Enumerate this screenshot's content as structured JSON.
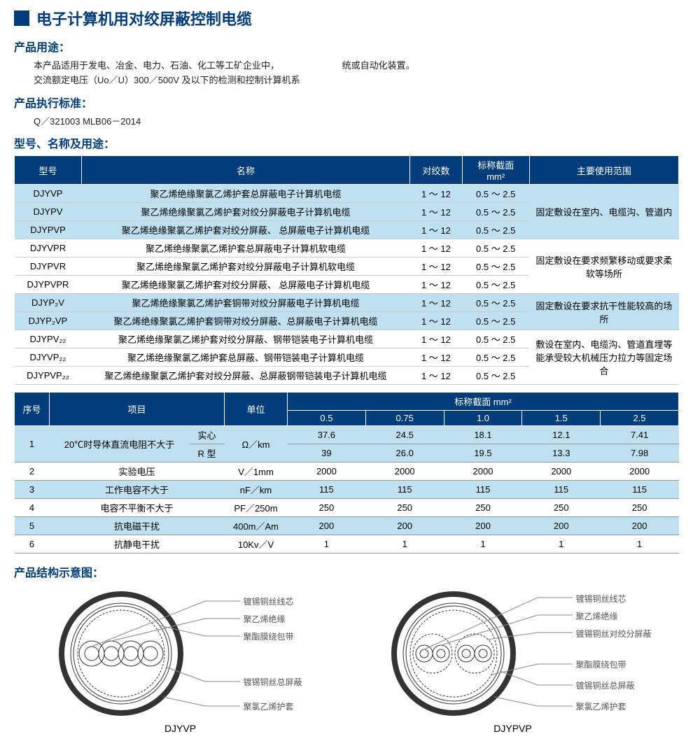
{
  "main_title": "电子计算机用对绞屏蔽控制电缆",
  "sections": {
    "usage_label": "产品用途：",
    "usage_text_1": "本产品适用于发电、冶金、电力、石油、化工等工矿企业中，",
    "usage_text_2": "交流额定电压（Uo／U）300／500V 及以下的检测和控制计算机系",
    "usage_text_3": "统或自动化装置。",
    "standard_label": "产品执行标准：",
    "standard_text": "Q／321003  MLB06－2014",
    "models_label": "型号、名称及用途：",
    "structure_label": "产品结构示意图："
  },
  "table1": {
    "headers": {
      "model": "型号",
      "name": "名称",
      "pairs": "对绞数",
      "section": "标称截面",
      "section_unit": "mm²",
      "usage": "主要使用范围"
    },
    "rows": [
      {
        "model": "DJYVP",
        "name": "聚乙烯绝缘聚氯乙烯护套总屏蔽电子计算机电缆",
        "pairs": "1 ～ 12",
        "section": "0.5 ～ 2.5",
        "usage": "",
        "bg": "blue"
      },
      {
        "model": "DJYPV",
        "name": "聚乙烯绝缘聚氯乙烯护套对绞分屏蔽电子计算机电缆",
        "pairs": "1 ～ 12",
        "section": "0.5 ～ 2.5",
        "usage": "",
        "bg": "blue"
      },
      {
        "model": "DJYPVP",
        "name": "聚乙烯绝缘聚氯乙烯护套对绞分屏蔽、 总屏蔽电子计算机电缆",
        "pairs": "1 ～ 12",
        "section": "0.5 ～ 2.5",
        "usage": "",
        "bg": "blue"
      },
      {
        "model": "DJYVPR",
        "name": "聚乙烯绝缘聚氯乙烯护套总屏蔽电子计算机软电缆",
        "pairs": "1 ～ 12",
        "section": "0.5 ～ 2.5",
        "usage": "",
        "bg": "white"
      },
      {
        "model": "DJYPVR",
        "name": "聚乙烯绝缘聚氯乙烯护套对绞分屏蔽电子计算机软电缆",
        "pairs": "1 ～ 12",
        "section": "0.5 ～ 2.5",
        "usage": "",
        "bg": "white"
      },
      {
        "model": "DJYPVPR",
        "name": "聚乙烯绝缘聚氯乙烯护套对绞分屏蔽、 总屏蔽电子计算机电缆",
        "pairs": "1 ～ 12",
        "section": "0.5 ～ 2.5",
        "usage": "",
        "bg": "white"
      },
      {
        "model": "DJYP₂V",
        "name": "聚乙烯绝缘聚氯乙烯护套铜带对绞分屏蔽电子计算机电缆",
        "pairs": "1 ～ 12",
        "section": "0.5 ～ 2.5",
        "usage": "",
        "bg": "blue"
      },
      {
        "model": "DJYP₂VP",
        "name": "聚乙烯绝缘聚氯乙烯护套铜带对绞分屏蔽、总屏蔽电子计算机电缆",
        "pairs": "1 ～ 12",
        "section": "0.5 ～ 2.5",
        "usage": "",
        "bg": "blue"
      },
      {
        "model": "DJYPV₂₂",
        "name": "聚乙烯绝缘聚氯乙烯护套对绞分屏蔽、钢带铠装电子计算机电缆",
        "pairs": "1 ～ 12",
        "section": "0.5 ～ 2.5",
        "usage": "",
        "bg": "white"
      },
      {
        "model": "DJYVP₂₂",
        "name": "聚乙烯绝缘聚氯乙烯护套总屏蔽、钢带铠装电子计算机电缆",
        "pairs": "1 ～ 12",
        "section": "0.5 ～ 2.5",
        "usage": "",
        "bg": "white"
      },
      {
        "model": "DJYPVP₂₂",
        "name": "聚乙烯绝缘聚氯乙烯护套对绞分屏蔽、总屏蔽钢带铠装电子计算机电缆",
        "pairs": "1 ～ 12",
        "section": "0.5 ～ 2.5",
        "usage": "",
        "bg": "white"
      }
    ],
    "usage_groups": [
      {
        "text": "固定敷设在室内、电缆沟、管道内",
        "rows": 3
      },
      {
        "text": "固定敷设在要求频繁移动或要求柔软等场所",
        "rows": 3
      },
      {
        "text": "固定敷设在要求抗干性能较高的场所",
        "rows": 2
      },
      {
        "text": "敷设在室内、电缆沟、管道直埋等能承受较大机械压力拉力等固定场合",
        "rows": 3
      }
    ]
  },
  "table2": {
    "headers": {
      "seq": "序号",
      "item": "项目",
      "unit": "单位",
      "section": "标称截面  mm²"
    },
    "sub_headers": [
      "0.5",
      "0.75",
      "1.0",
      "1.5",
      "2.5"
    ],
    "row1_label": "1",
    "row1_item": "20℃时导体直流电阻不大于",
    "row1_sub1": "实心",
    "row1_sub2": "R 型",
    "row1_unit": "Ω／km",
    "row1_vals1": [
      "37.6",
      "24.5",
      "18.1",
      "12.1",
      "7.41"
    ],
    "row1_vals2": [
      "39",
      "26.0",
      "19.5",
      "13.3",
      "7.98"
    ],
    "rows": [
      {
        "seq": "2",
        "item": "实验电压",
        "unit": "V／1mm",
        "vals": [
          "2000",
          "2000",
          "2000",
          "2000",
          "2000"
        ],
        "bg": "white"
      },
      {
        "seq": "3",
        "item": "工作电容不大于",
        "unit": "nF／km",
        "vals": [
          "115",
          "115",
          "115",
          "115",
          "115"
        ],
        "bg": "blue"
      },
      {
        "seq": "4",
        "item": "电容不平衡不大于",
        "unit": "PF／250m",
        "vals": [
          "250",
          "250",
          "250",
          "250",
          "250"
        ],
        "bg": "white"
      },
      {
        "seq": "5",
        "item": "抗电磁干扰",
        "unit": "400m／Am",
        "vals": [
          "200",
          "200",
          "200",
          "200",
          "200"
        ],
        "bg": "blue"
      },
      {
        "seq": "6",
        "item": "抗静电干扰",
        "unit": "10Kv／V",
        "vals": [
          "1",
          "1",
          "1",
          "1",
          "1"
        ],
        "bg": "white"
      }
    ]
  },
  "diagrams": {
    "left": {
      "label": "DJYVP",
      "callouts": [
        "镀锡铜丝线芯",
        "聚乙烯绝缘",
        "聚酯膜绕包带",
        "镀锡铜丝总屏蔽",
        "聚氯乙烯护套"
      ]
    },
    "right": {
      "label": "DJYPVP",
      "callouts": [
        "镀锡铜丝线芯",
        "聚乙烯绝缘",
        "镀锡铜丝对绞分屏蔽",
        "聚酯膜绕包带",
        "镀锡铜丝总屏蔽",
        "聚氯乙烯护套"
      ]
    }
  }
}
